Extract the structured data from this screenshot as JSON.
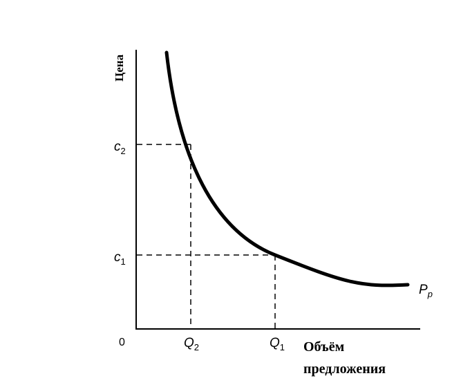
{
  "axes": {
    "y_label": "Цена",
    "x_label_line1": "Объём",
    "x_label_line2": "предложения",
    "origin_label": "0"
  },
  "price_ticks": [
    {
      "base": "c",
      "sub": "2"
    },
    {
      "base": "c",
      "sub": "1"
    }
  ],
  "quantity_ticks": [
    {
      "base": "Q",
      "sub": "2"
    },
    {
      "base": "Q",
      "sub": "1"
    }
  ],
  "curve": {
    "label_base": "P",
    "label_sub": "p",
    "color": "#000000"
  },
  "colors": {
    "background": "#ffffff",
    "ink": "#000000"
  }
}
